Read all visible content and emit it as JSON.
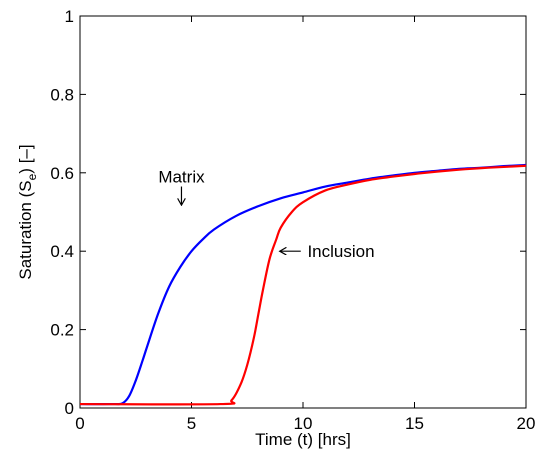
{
  "chart_data": {
    "type": "line",
    "xlabel": "Time (t) [hrs]",
    "ylabel": {
      "prefix": "Saturation (S",
      "subscript": "e",
      "suffix": ") [–]"
    },
    "xlim": [
      0,
      20
    ],
    "ylim": [
      0,
      1
    ],
    "x_ticks": [
      "0",
      "5",
      "10",
      "15",
      "20"
    ],
    "y_ticks": [
      "0",
      "0.2",
      "0.4",
      "0.6",
      "0.8",
      "1"
    ],
    "grid": false,
    "series": [
      {
        "name": "Matrix",
        "color": "#0000ff",
        "points": [
          [
            0,
            0.01
          ],
          [
            1.5,
            0.01
          ],
          [
            1.9,
            0.012
          ],
          [
            2.2,
            0.03
          ],
          [
            2.5,
            0.07
          ],
          [
            2.8,
            0.12
          ],
          [
            3.0,
            0.155
          ],
          [
            3.5,
            0.24
          ],
          [
            4.0,
            0.31
          ],
          [
            4.5,
            0.36
          ],
          [
            5.0,
            0.4
          ],
          [
            5.5,
            0.43
          ],
          [
            6.0,
            0.455
          ],
          [
            7.0,
            0.49
          ],
          [
            8.0,
            0.515
          ],
          [
            9.0,
            0.535
          ],
          [
            10.0,
            0.55
          ],
          [
            11.0,
            0.565
          ],
          [
            12.0,
            0.575
          ],
          [
            13.0,
            0.585
          ],
          [
            14.0,
            0.593
          ],
          [
            15.0,
            0.6
          ],
          [
            16.0,
            0.605
          ],
          [
            17.0,
            0.61
          ],
          [
            18.0,
            0.613
          ],
          [
            19.0,
            0.617
          ],
          [
            20.0,
            0.62
          ]
        ]
      },
      {
        "name": "Inclusion",
        "color": "#ff0000",
        "points": [
          [
            0,
            0.01
          ],
          [
            6.3,
            0.01
          ],
          [
            6.8,
            0.02
          ],
          [
            7.2,
            0.06
          ],
          [
            7.5,
            0.11
          ],
          [
            7.8,
            0.18
          ],
          [
            8.0,
            0.24
          ],
          [
            8.2,
            0.3
          ],
          [
            8.5,
            0.38
          ],
          [
            8.8,
            0.43
          ],
          [
            9.0,
            0.46
          ],
          [
            9.5,
            0.5
          ],
          [
            10.0,
            0.525
          ],
          [
            11.0,
            0.555
          ],
          [
            12.0,
            0.57
          ],
          [
            13.0,
            0.582
          ],
          [
            14.0,
            0.59
          ],
          [
            15.0,
            0.597
          ],
          [
            16.0,
            0.603
          ],
          [
            17.0,
            0.608
          ],
          [
            18.0,
            0.612
          ],
          [
            19.0,
            0.615
          ],
          [
            20.0,
            0.618
          ]
        ]
      }
    ],
    "annotations": [
      {
        "text": "Matrix",
        "arrow_from": [
          4.55,
          0.565
        ],
        "arrow_to": [
          4.55,
          0.52
        ],
        "text_at": [
          4.55,
          0.59
        ],
        "anchor": "middle"
      },
      {
        "text": "Inclusion",
        "arrow_from": [
          9.9,
          0.4
        ],
        "arrow_to": [
          9.0,
          0.4
        ],
        "text_at": [
          10.2,
          0.4
        ],
        "anchor": "start"
      }
    ]
  }
}
